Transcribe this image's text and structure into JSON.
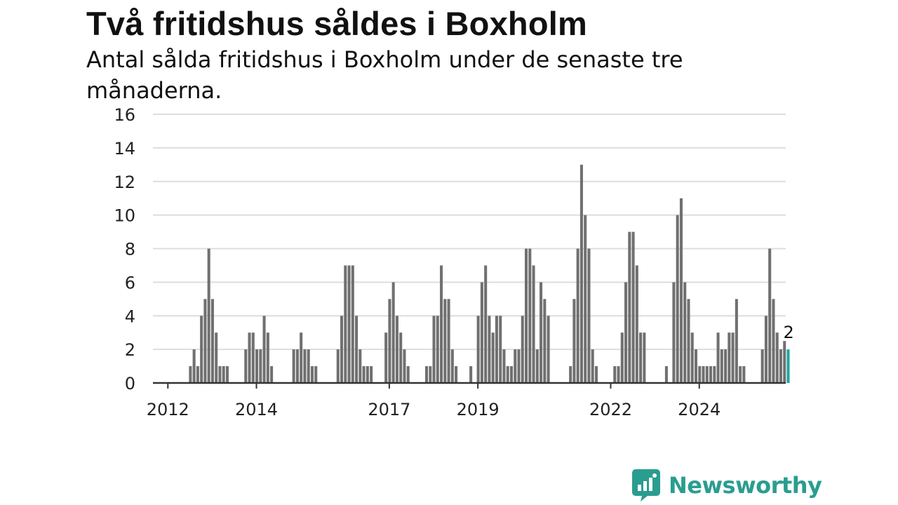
{
  "chart_data": {
    "type": "bar",
    "title": "Två fritidshus såldes i Boxholm",
    "subtitle": "Antal sålda fritidshus i Boxholm under de senaste tre månaderna.",
    "xlabel": "",
    "ylabel": "",
    "ylim": [
      0,
      16
    ],
    "y_ticks": [
      "0",
      "2",
      "4",
      "6",
      "8",
      "10",
      "12",
      "14",
      "16"
    ],
    "x_ticks": [
      {
        "label": "2012",
        "date": "2012-01"
      },
      {
        "label": "2014",
        "date": "2014-01"
      },
      {
        "label": "2017",
        "date": "2017-01"
      },
      {
        "label": "2019",
        "date": "2019-01"
      },
      {
        "label": "2022",
        "date": "2022-01"
      },
      {
        "label": "2024",
        "date": "2024-01"
      }
    ],
    "grid": true,
    "colors": {
      "bar": "#707070",
      "highlight": "#1ba79e",
      "grid": "#dddddd",
      "axis": "#333333"
    },
    "highlight_label": "2",
    "series": [
      {
        "start_date": "2011-10",
        "values": [
          0,
          0,
          0,
          0,
          0,
          0,
          0,
          0,
          0,
          1,
          2,
          1,
          4,
          5,
          8,
          5,
          3,
          1,
          1,
          1,
          0,
          0,
          0,
          0,
          2,
          3,
          3,
          2,
          2,
          4,
          3,
          1,
          0,
          0,
          0,
          0,
          0,
          2,
          2,
          3,
          2,
          2,
          1,
          1,
          0,
          0,
          0,
          0,
          0,
          2,
          4,
          7,
          7,
          7,
          4,
          2,
          1,
          1,
          1,
          0,
          0,
          0,
          3,
          5,
          6,
          4,
          3,
          2,
          1,
          0,
          0,
          0,
          0,
          1,
          1,
          4,
          4,
          7,
          5,
          5,
          2,
          1,
          0,
          0,
          0,
          1,
          0,
          4,
          6,
          7,
          4,
          3,
          4,
          4,
          2,
          1,
          1,
          2,
          2,
          4,
          8,
          8,
          7,
          2,
          6,
          5,
          4,
          0,
          0,
          0,
          0,
          0,
          1,
          5,
          8,
          13,
          10,
          8,
          2,
          1,
          0,
          0,
          0,
          0,
          1,
          1,
          3,
          6,
          9,
          9,
          7,
          3,
          3,
          0,
          0,
          0,
          0,
          0,
          1,
          0,
          6,
          10,
          11,
          6,
          5,
          3,
          2,
          1,
          1,
          1,
          1,
          1,
          3,
          2,
          2,
          3,
          3,
          5,
          1,
          1,
          0,
          0,
          0,
          0,
          2,
          4,
          8,
          5,
          3,
          2,
          2.5,
          2
        ]
      }
    ]
  },
  "brand": {
    "name": "Newsworthy",
    "color": "#2a9d8f"
  }
}
